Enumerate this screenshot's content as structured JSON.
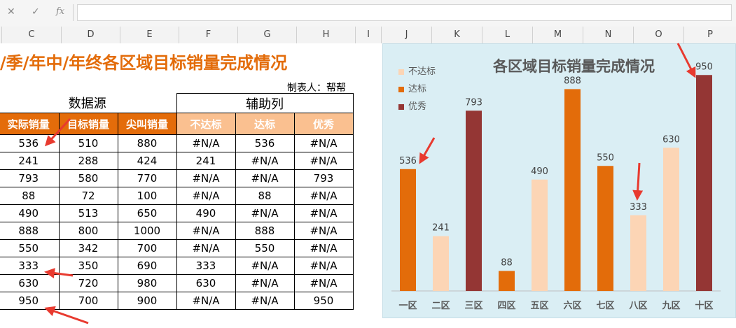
{
  "formula_bar": {
    "cancel_icon": "✕",
    "enter_icon": "✓",
    "fx_label": "fx",
    "value": ""
  },
  "columns": [
    "C",
    "D",
    "E",
    "F",
    "G",
    "H",
    "I",
    "J",
    "K",
    "L",
    "M",
    "N",
    "O",
    "P"
  ],
  "sheet": {
    "title": "/季/年中/年终各区域目标销量完成情况",
    "maker": "制表人：帮帮",
    "group_source": "数据源",
    "group_helper": "辅助列",
    "headers": [
      "实际销量",
      "目标销量",
      "尖叫销量",
      "不达标",
      "达标",
      "优秀"
    ],
    "rows": [
      [
        "536",
        "510",
        "880",
        "#N/A",
        "536",
        "#N/A"
      ],
      [
        "241",
        "288",
        "424",
        "241",
        "#N/A",
        "#N/A"
      ],
      [
        "793",
        "580",
        "770",
        "#N/A",
        "#N/A",
        "793"
      ],
      [
        "88",
        "72",
        "100",
        "#N/A",
        "88",
        "#N/A"
      ],
      [
        "490",
        "513",
        "650",
        "490",
        "#N/A",
        "#N/A"
      ],
      [
        "888",
        "800",
        "1000",
        "#N/A",
        "888",
        "#N/A"
      ],
      [
        "550",
        "342",
        "700",
        "#N/A",
        "550",
        "#N/A"
      ],
      [
        "333",
        "350",
        "690",
        "333",
        "#N/A",
        "#N/A"
      ],
      [
        "630",
        "720",
        "980",
        "630",
        "#N/A",
        "#N/A"
      ],
      [
        "950",
        "700",
        "900",
        "#N/A",
        "#N/A",
        "950"
      ]
    ]
  },
  "colors": {
    "header_dark": "#e46c0a",
    "header_light": "#fac090",
    "title": "#e36c0a",
    "below_target": "#fcd5b5",
    "on_target": "#e36c0a",
    "excellent": "#943634",
    "chart_bg": "#daeef4",
    "arrow": "#e83a2f"
  },
  "chart_data": {
    "type": "bar",
    "title": "各区域目标销量完成情况",
    "categories": [
      "一区",
      "二区",
      "三区",
      "四区",
      "五区",
      "六区",
      "七区",
      "八区",
      "九区",
      "十区"
    ],
    "values": [
      536,
      241,
      793,
      88,
      490,
      888,
      550,
      333,
      630,
      950
    ],
    "status": [
      "达标",
      "不达标",
      "优秀",
      "达标",
      "不达标",
      "达标",
      "达标",
      "不达标",
      "不达标",
      "优秀"
    ],
    "legend": [
      "不达标",
      "达标",
      "优秀"
    ],
    "legend_position": "top-left",
    "ylim": [
      0,
      1000
    ],
    "grid": false,
    "data_labels": true
  }
}
